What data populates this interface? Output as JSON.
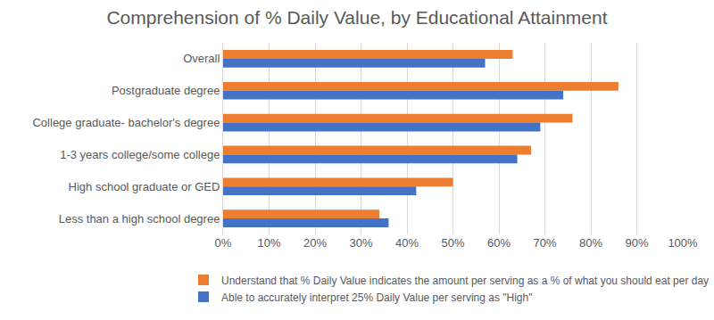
{
  "chart_data": {
    "type": "bar",
    "title": "Comprehension of % Daily Value, by Educational Attainment",
    "orientation": "horizontal",
    "categories": [
      "Overall",
      "Postgraduate degree",
      "College graduate- bachelor's degree",
      "1-3 years college/some college",
      "High school graduate or GED",
      "Less than a high school degree"
    ],
    "series": [
      {
        "name": "Understand that % Daily Value indicates the amount per serving as a % of what you should eat per day",
        "color": "#ED7D31",
        "values": [
          63,
          86,
          76,
          67,
          50,
          34
        ]
      },
      {
        "name": "Able to accurately interpret 25% Daily Value per serving as \"High\"",
        "color": "#4472C4",
        "values": [
          57,
          74,
          69,
          64,
          42,
          36
        ]
      }
    ],
    "xlim": [
      0,
      100
    ],
    "xticks": [
      {
        "value": 0,
        "label": "0%"
      },
      {
        "value": 10,
        "label": "10%"
      },
      {
        "value": 20,
        "label": "20%"
      },
      {
        "value": 30,
        "label": "30%"
      },
      {
        "value": 40,
        "label": "40%"
      },
      {
        "value": 50,
        "label": "50%"
      },
      {
        "value": 60,
        "label": "60%"
      },
      {
        "value": 70,
        "label": "70%"
      },
      {
        "value": 80,
        "label": "80%"
      },
      {
        "value": 90,
        "label": "90%"
      },
      {
        "value": 100,
        "label": "100%"
      }
    ],
    "grid": true,
    "legend": "bottom"
  }
}
